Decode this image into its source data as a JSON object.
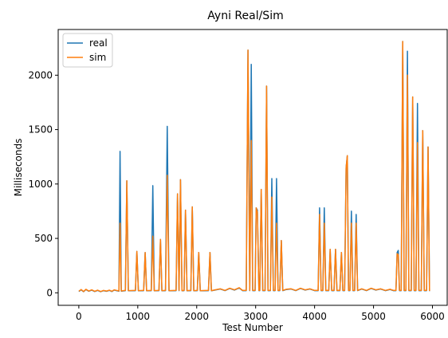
{
  "chart_data": {
    "type": "line",
    "title": "Ayni Real/Sim",
    "xlabel": "Test Number",
    "ylabel": "Milliseconds",
    "xlim": [
      -350,
      6250
    ],
    "ylim": [
      -115,
      2420
    ],
    "xticks": [
      0,
      1000,
      2000,
      3000,
      4000,
      5000,
      6000
    ],
    "xtick_labels": [
      "0",
      "1000",
      "2000",
      "3000",
      "4000",
      "5000",
      "6000"
    ],
    "yticks": [
      0,
      500,
      1000,
      1500,
      2000
    ],
    "ytick_labels": [
      "0",
      "500",
      "1000",
      "1500",
      "2000"
    ],
    "grid": false,
    "legend_position": "top-left",
    "colors": {
      "real": "#1f77b4",
      "sim": "#ff7f0e"
    },
    "series": [
      {
        "name": "real",
        "points": [
          [
            0,
            12
          ],
          [
            40,
            28
          ],
          [
            80,
            10
          ],
          [
            120,
            30
          ],
          [
            170,
            15
          ],
          [
            220,
            25
          ],
          [
            270,
            12
          ],
          [
            320,
            22
          ],
          [
            370,
            10
          ],
          [
            420,
            20
          ],
          [
            470,
            14
          ],
          [
            520,
            22
          ],
          [
            560,
            12
          ],
          [
            600,
            25
          ],
          [
            640,
            20
          ],
          [
            680,
            15
          ],
          [
            700,
            1300
          ],
          [
            720,
            15
          ],
          [
            790,
            20
          ],
          [
            815,
            1030
          ],
          [
            840,
            18
          ],
          [
            960,
            20
          ],
          [
            985,
            380
          ],
          [
            1010,
            18
          ],
          [
            1100,
            20
          ],
          [
            1125,
            370
          ],
          [
            1150,
            18
          ],
          [
            1230,
            20
          ],
          [
            1255,
            985
          ],
          [
            1280,
            18
          ],
          [
            1360,
            20
          ],
          [
            1385,
            490
          ],
          [
            1410,
            18
          ],
          [
            1470,
            20
          ],
          [
            1500,
            1530
          ],
          [
            1530,
            18
          ],
          [
            1650,
            20
          ],
          [
            1675,
            910
          ],
          [
            1700,
            20
          ],
          [
            1725,
            1040
          ],
          [
            1750,
            18
          ],
          [
            1785,
            20
          ],
          [
            1810,
            760
          ],
          [
            1835,
            18
          ],
          [
            1900,
            20
          ],
          [
            1925,
            790
          ],
          [
            1950,
            18
          ],
          [
            2010,
            20
          ],
          [
            2035,
            370
          ],
          [
            2060,
            18
          ],
          [
            2200,
            20
          ],
          [
            2225,
            370
          ],
          [
            2250,
            18
          ],
          [
            2310,
            25
          ],
          [
            2400,
            35
          ],
          [
            2480,
            20
          ],
          [
            2560,
            40
          ],
          [
            2640,
            25
          ],
          [
            2720,
            45
          ],
          [
            2780,
            20
          ],
          [
            2840,
            20
          ],
          [
            2870,
            2230
          ],
          [
            2900,
            20
          ],
          [
            2925,
            2100
          ],
          [
            2950,
            20
          ],
          [
            2990,
            20
          ],
          [
            3010,
            780
          ],
          [
            3030,
            760
          ],
          [
            3055,
            20
          ],
          [
            3070,
            20
          ],
          [
            3095,
            950
          ],
          [
            3120,
            20
          ],
          [
            3160,
            20
          ],
          [
            3185,
            1900
          ],
          [
            3210,
            20
          ],
          [
            3250,
            20
          ],
          [
            3275,
            1050
          ],
          [
            3300,
            20
          ],
          [
            3330,
            20
          ],
          [
            3355,
            1050
          ],
          [
            3380,
            20
          ],
          [
            3410,
            20
          ],
          [
            3435,
            480
          ],
          [
            3460,
            20
          ],
          [
            3520,
            30
          ],
          [
            3600,
            35
          ],
          [
            3680,
            20
          ],
          [
            3760,
            40
          ],
          [
            3840,
            25
          ],
          [
            3920,
            35
          ],
          [
            4000,
            20
          ],
          [
            4060,
            20
          ],
          [
            4085,
            780
          ],
          [
            4110,
            20
          ],
          [
            4140,
            20
          ],
          [
            4165,
            780
          ],
          [
            4190,
            20
          ],
          [
            4240,
            20
          ],
          [
            4265,
            400
          ],
          [
            4290,
            20
          ],
          [
            4330,
            20
          ],
          [
            4355,
            400
          ],
          [
            4380,
            20
          ],
          [
            4430,
            20
          ],
          [
            4455,
            370
          ],
          [
            4480,
            20
          ],
          [
            4510,
            20
          ],
          [
            4535,
            1150
          ],
          [
            4555,
            1260
          ],
          [
            4575,
            20
          ],
          [
            4600,
            20
          ],
          [
            4625,
            750
          ],
          [
            4650,
            20
          ],
          [
            4680,
            20
          ],
          [
            4705,
            720
          ],
          [
            4730,
            20
          ],
          [
            4800,
            35
          ],
          [
            4880,
            20
          ],
          [
            4960,
            40
          ],
          [
            5040,
            25
          ],
          [
            5120,
            35
          ],
          [
            5200,
            20
          ],
          [
            5280,
            30
          ],
          [
            5340,
            20
          ],
          [
            5380,
            20
          ],
          [
            5400,
            370
          ],
          [
            5420,
            390
          ],
          [
            5440,
            20
          ],
          [
            5470,
            20
          ],
          [
            5495,
            2310
          ],
          [
            5520,
            20
          ],
          [
            5550,
            20
          ],
          [
            5575,
            2220
          ],
          [
            5600,
            20
          ],
          [
            5640,
            20
          ],
          [
            5665,
            1800
          ],
          [
            5690,
            20
          ],
          [
            5720,
            20
          ],
          [
            5745,
            1740
          ],
          [
            5770,
            20
          ],
          [
            5810,
            20
          ],
          [
            5835,
            1490
          ],
          [
            5860,
            20
          ],
          [
            5900,
            20
          ],
          [
            5925,
            1340
          ],
          [
            5950,
            15
          ]
        ]
      },
      {
        "name": "sim",
        "points": [
          [
            0,
            15
          ],
          [
            40,
            30
          ],
          [
            80,
            12
          ],
          [
            120,
            32
          ],
          [
            170,
            16
          ],
          [
            220,
            27
          ],
          [
            270,
            14
          ],
          [
            320,
            24
          ],
          [
            370,
            12
          ],
          [
            420,
            22
          ],
          [
            470,
            16
          ],
          [
            520,
            24
          ],
          [
            560,
            14
          ],
          [
            600,
            27
          ],
          [
            640,
            22
          ],
          [
            680,
            17
          ],
          [
            700,
            640
          ],
          [
            720,
            17
          ],
          [
            790,
            22
          ],
          [
            815,
            1030
          ],
          [
            840,
            20
          ],
          [
            960,
            22
          ],
          [
            985,
            380
          ],
          [
            1010,
            20
          ],
          [
            1100,
            22
          ],
          [
            1125,
            370
          ],
          [
            1150,
            20
          ],
          [
            1230,
            22
          ],
          [
            1255,
            520
          ],
          [
            1280,
            20
          ],
          [
            1360,
            22
          ],
          [
            1385,
            490
          ],
          [
            1410,
            20
          ],
          [
            1470,
            22
          ],
          [
            1500,
            1080
          ],
          [
            1530,
            20
          ],
          [
            1650,
            22
          ],
          [
            1675,
            910
          ],
          [
            1700,
            22
          ],
          [
            1725,
            1040
          ],
          [
            1750,
            20
          ],
          [
            1785,
            22
          ],
          [
            1810,
            760
          ],
          [
            1835,
            20
          ],
          [
            1900,
            22
          ],
          [
            1925,
            790
          ],
          [
            1950,
            20
          ],
          [
            2010,
            22
          ],
          [
            2035,
            370
          ],
          [
            2060,
            20
          ],
          [
            2200,
            22
          ],
          [
            2225,
            370
          ],
          [
            2250,
            20
          ],
          [
            2310,
            27
          ],
          [
            2400,
            37
          ],
          [
            2480,
            22
          ],
          [
            2560,
            42
          ],
          [
            2640,
            27
          ],
          [
            2720,
            47
          ],
          [
            2780,
            22
          ],
          [
            2840,
            22
          ],
          [
            2870,
            2230
          ],
          [
            2900,
            22
          ],
          [
            2925,
            1400
          ],
          [
            2950,
            22
          ],
          [
            2990,
            22
          ],
          [
            3010,
            780
          ],
          [
            3030,
            740
          ],
          [
            3055,
            22
          ],
          [
            3070,
            22
          ],
          [
            3095,
            950
          ],
          [
            3120,
            22
          ],
          [
            3160,
            22
          ],
          [
            3185,
            1900
          ],
          [
            3210,
            22
          ],
          [
            3250,
            22
          ],
          [
            3275,
            880
          ],
          [
            3300,
            22
          ],
          [
            3330,
            22
          ],
          [
            3355,
            640
          ],
          [
            3380,
            22
          ],
          [
            3410,
            22
          ],
          [
            3435,
            480
          ],
          [
            3460,
            22
          ],
          [
            3520,
            32
          ],
          [
            3600,
            37
          ],
          [
            3680,
            22
          ],
          [
            3760,
            42
          ],
          [
            3840,
            27
          ],
          [
            3920,
            37
          ],
          [
            4000,
            22
          ],
          [
            4060,
            22
          ],
          [
            4085,
            720
          ],
          [
            4110,
            22
          ],
          [
            4140,
            22
          ],
          [
            4165,
            640
          ],
          [
            4190,
            22
          ],
          [
            4240,
            22
          ],
          [
            4265,
            400
          ],
          [
            4290,
            22
          ],
          [
            4330,
            22
          ],
          [
            4355,
            400
          ],
          [
            4380,
            22
          ],
          [
            4430,
            22
          ],
          [
            4455,
            370
          ],
          [
            4480,
            22
          ],
          [
            4510,
            22
          ],
          [
            4535,
            1150
          ],
          [
            4555,
            1260
          ],
          [
            4575,
            22
          ],
          [
            4600,
            22
          ],
          [
            4625,
            640
          ],
          [
            4650,
            22
          ],
          [
            4680,
            22
          ],
          [
            4705,
            640
          ],
          [
            4730,
            22
          ],
          [
            4800,
            37
          ],
          [
            4880,
            22
          ],
          [
            4960,
            42
          ],
          [
            5040,
            27
          ],
          [
            5120,
            37
          ],
          [
            5200,
            22
          ],
          [
            5280,
            32
          ],
          [
            5340,
            22
          ],
          [
            5380,
            22
          ],
          [
            5400,
            360
          ],
          [
            5420,
            350
          ],
          [
            5440,
            22
          ],
          [
            5470,
            22
          ],
          [
            5495,
            2310
          ],
          [
            5520,
            22
          ],
          [
            5550,
            22
          ],
          [
            5575,
            2000
          ],
          [
            5600,
            22
          ],
          [
            5640,
            22
          ],
          [
            5665,
            1800
          ],
          [
            5690,
            22
          ],
          [
            5720,
            22
          ],
          [
            5745,
            1380
          ],
          [
            5770,
            22
          ],
          [
            5810,
            22
          ],
          [
            5835,
            1490
          ],
          [
            5860,
            22
          ],
          [
            5900,
            22
          ],
          [
            5925,
            1340
          ],
          [
            5950,
            17
          ]
        ]
      }
    ]
  }
}
